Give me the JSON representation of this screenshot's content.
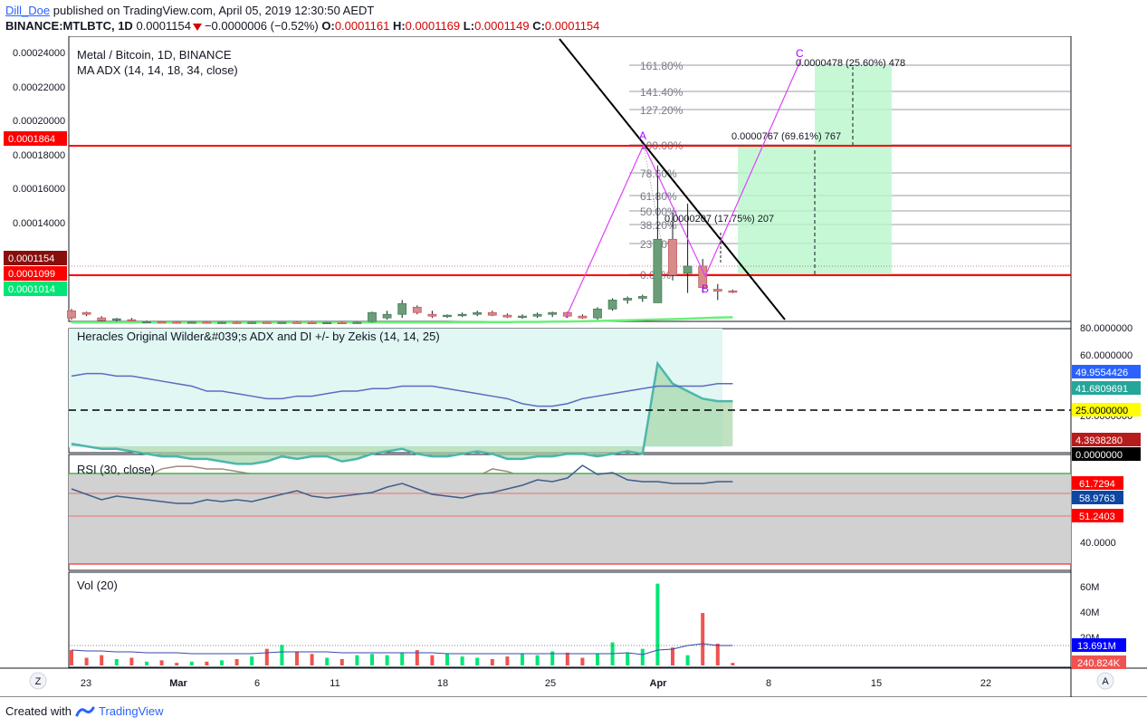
{
  "header": {
    "user": "Dill_Doe",
    "published_text": " published on TradingView.com, April 05, 2019 12:30:50 AEDT",
    "symbol": "BINANCE:MTLBTC, 1D",
    "last": "0.0001154",
    "change": "−0.0000006 (−0.52%)",
    "o_label": "O:",
    "o": "0.0001161",
    "h_label": "H:",
    "h": "0.0001169",
    "l_label": "L:",
    "l": "0.0001149",
    "c_label": "C:",
    "c": "0.0001154"
  },
  "main_panel": {
    "title": "Metal / Bitcoin, 1D, BINANCE",
    "study": "MA ADX (14, 14, 18, 34, close)",
    "price_labels": [
      "0.00024000",
      "0.00022000",
      "0.00020000",
      "0.00018000",
      "0.00016000",
      "0.00014000"
    ],
    "badges": [
      {
        "text": "0.0001864",
        "color": "#ff0000"
      },
      {
        "text": "0.0001154",
        "color": "#880e0e"
      },
      {
        "text": "0.0001099",
        "color": "#ff0000"
      },
      {
        "text": "0.0001014",
        "color": "#00e676"
      }
    ],
    "fib_levels": [
      "161.80%",
      "141.40%",
      "127.20%",
      "100.00%",
      "78.60%",
      "61.80%",
      "50.00%",
      "38.20%",
      "23.60%",
      "0.00%"
    ],
    "pattern_points": [
      "A",
      "B",
      "C"
    ],
    "annotations": [
      "0.0000478 (25.60%) 478",
      "0.0000767 (69.61%) 767",
      "0.0000207 (17.75%) 207"
    ]
  },
  "adx_panel": {
    "title": "Heracles Original Wilder&#039;s ADX and DI +/- by Zekis (14, 14, 25)",
    "axis_labels": [
      "80.0000000",
      "60.0000000",
      "20.0000000"
    ],
    "badges": [
      {
        "text": "49.9554426",
        "color": "#2962ff"
      },
      {
        "text": "41.6809691",
        "color": "#26a69a"
      },
      {
        "text": "25.0000000",
        "color": "#ffff00",
        "textcolor": "#000000"
      },
      {
        "text": "4.3938280",
        "color": "#b71c1c"
      },
      {
        "text": "0.0000000",
        "color": "#000000"
      }
    ]
  },
  "rsi_panel": {
    "title": "RSI (30, close)",
    "axis_labels": [
      "40.0000"
    ],
    "badges": [
      {
        "text": "61.7294",
        "color": "#ff0000"
      },
      {
        "text": "58.9763",
        "color": "#0d47a1"
      },
      {
        "text": "51.2403",
        "color": "#ff0000"
      }
    ]
  },
  "vol_panel": {
    "title": "Vol (20)",
    "axis_labels": [
      "60M",
      "40M",
      "20M"
    ],
    "badges": [
      {
        "text": "13.691M",
        "color": "#0000ff"
      },
      {
        "text": "240.824K",
        "color": "#ef5350"
      }
    ]
  },
  "time_axis": {
    "labels": [
      "23",
      "Mar",
      "6",
      "11",
      "18",
      "25",
      "Apr",
      "8",
      "15",
      "22"
    ],
    "left_button": "Z",
    "right_button": "A"
  },
  "footer": {
    "created": "Created with",
    "brand": "TradingView"
  },
  "chart_data": {
    "type": "candlestick",
    "title": "Metal / Bitcoin, 1D, BINANCE",
    "start_date": "2019-02-22",
    "ohlc": [
      [
        0.000105,
        0.000106,
        0.0001,
        0.000101
      ],
      [
        0.000104,
        0.0001045,
        0.000102,
        0.000103
      ],
      [
        0.000101,
        0.000102,
        9.9e-05,
        9.95e-05
      ],
      [
        0.0001,
        0.000101,
        9.9e-05,
        0.0001005
      ],
      [
        0.0001,
        0.000101,
        9.9e-05,
        9.95e-05
      ],
      [
        9.9e-05,
        9.95e-05,
        9.85e-05,
        9.9e-05
      ],
      [
        9.88e-05,
        9.9e-05,
        9.85e-05,
        9.87e-05
      ],
      [
        9.87e-05,
        9.9e-05,
        9.84e-05,
        9.86e-05
      ],
      [
        9.86e-05,
        9.9e-05,
        9.84e-05,
        9.87e-05
      ],
      [
        9.87e-05,
        9.9e-05,
        9.84e-05,
        9.85e-05
      ],
      [
        9.85e-05,
        9.9e-05,
        9.83e-05,
        9.86e-05
      ],
      [
        9.86e-05,
        9.9e-05,
        9.84e-05,
        9.85e-05
      ],
      [
        9.85e-05,
        9.89e-05,
        9.84e-05,
        9.86e-05
      ],
      [
        9.86e-05,
        9.89e-05,
        9.83e-05,
        9.85e-05
      ],
      [
        9.85e-05,
        9.88e-05,
        9.83e-05,
        9.86e-05
      ],
      [
        9.86e-05,
        9.9e-05,
        9.84e-05,
        9.85e-05
      ],
      [
        9.85e-05,
        9.89e-05,
        9.83e-05,
        9.84e-05
      ],
      [
        9.84e-05,
        9.88e-05,
        9.83e-05,
        9.85e-05
      ],
      [
        9.85e-05,
        9.89e-05,
        9.83e-05,
        9.84e-05
      ],
      [
        9.84e-05,
        9.9e-05,
        9.83e-05,
        9.86e-05
      ],
      [
        9.9e-05,
        0.0001045,
        9.85e-05,
        0.000104
      ],
      [
        0.000101,
        0.000105,
        0.0001,
        0.000103
      ],
      [
        0.000103,
        0.000111,
        0.000101,
        0.000109
      ],
      [
        0.000107,
        0.000108,
        0.000103,
        0.000104
      ],
      [
        0.000103,
        0.000105,
        0.000101,
        0.000102
      ],
      [
        0.000102,
        0.000103,
        0.000101,
        0.0001025
      ],
      [
        0.0001025,
        0.000104,
        0.0001015,
        0.000103
      ],
      [
        0.000103,
        0.000105,
        0.000102,
        0.000104
      ],
      [
        0.000104,
        0.000105,
        0.000102,
        0.0001025
      ],
      [
        0.0001025,
        0.0001035,
        0.000101,
        0.0001015
      ],
      [
        0.0001015,
        0.000103,
        0.0001005,
        0.000102
      ],
      [
        0.000102,
        0.000104,
        0.000101,
        0.000103
      ],
      [
        0.000103,
        0.0001045,
        0.0001015,
        0.000104
      ],
      [
        0.000104,
        0.0001045,
        0.000101,
        0.000102
      ],
      [
        0.000102,
        0.000103,
        0.0001005,
        0.000101
      ],
      [
        0.000101,
        0.000107,
        0.0001,
        0.000106
      ],
      [
        0.000106,
        0.000112,
        0.000105,
        0.000111
      ],
      [
        0.000111,
        0.000113,
        0.000109,
        0.000112
      ],
      [
        0.000112,
        0.000114,
        0.00011,
        0.000113
      ],
      [
        0.0001095,
        0.0001864,
        0.0001095,
        0.000145
      ],
      [
        0.000145,
        0.00016,
        0.000122,
        0.000125
      ],
      [
        0.000126,
        0.000165,
        0.000115,
        0.00013
      ],
      [
        0.00013,
        0.000134,
        0.000115,
        0.000118
      ],
      [
        0.000117,
        0.00012,
        0.000111,
        0.000116
      ],
      [
        0.0001161,
        0.0001169,
        0.0001149,
        0.0001154
      ]
    ],
    "volume": [
      12,
      6,
      8,
      5,
      6,
      3,
      4,
      2,
      3,
      3,
      4,
      5,
      7,
      13,
      16,
      11,
      9,
      6,
      5,
      8,
      9,
      8,
      10,
      12,
      8,
      9,
      7,
      6,
      5,
      7,
      9,
      8,
      11,
      10,
      6,
      9,
      18,
      10,
      13,
      64,
      14,
      8,
      41,
      17,
      2
    ],
    "series_adx": [
      26,
      25,
      24,
      24,
      23,
      22,
      21,
      21,
      20,
      20,
      19,
      18,
      18,
      19,
      21,
      20,
      21,
      21,
      19,
      20,
      22,
      23,
      24,
      22,
      21,
      21,
      22,
      23,
      22,
      20,
      20,
      21,
      21,
      22,
      22,
      21,
      22,
      23,
      22,
      58,
      50,
      47,
      44,
      43,
      43
    ],
    "series_di_plus": [
      53,
      54,
      54,
      53,
      53,
      52,
      51,
      50,
      49,
      47,
      47,
      46,
      45,
      44,
      44,
      45,
      45,
      46,
      47,
      47,
      48,
      48,
      49,
      49,
      49,
      48,
      47,
      46,
      45,
      44,
      42,
      41,
      41,
      42,
      44,
      45,
      46,
      47,
      48,
      49,
      49,
      49,
      49,
      50,
      50
    ],
    "series_di_minus": [
      8,
      8,
      14,
      14,
      13,
      13,
      16,
      17,
      17,
      16,
      16,
      15,
      14,
      14,
      13,
      11,
      10,
      11,
      12,
      12,
      12,
      13,
      14,
      14,
      14,
      13,
      12,
      13,
      16,
      15,
      13,
      8,
      7,
      6,
      5,
      5,
      6,
      6,
      5,
      6,
      6,
      5,
      5,
      5,
      4
    ],
    "rsi": [
      55,
      52,
      49,
      51,
      50,
      49,
      48,
      47,
      47,
      49,
      48,
      49,
      48,
      50,
      52,
      54,
      51,
      50,
      51,
      52,
      53,
      56,
      58,
      55,
      52,
      51,
      50,
      52,
      53,
      55,
      57,
      60,
      59,
      61,
      68,
      63,
      64,
      60,
      59,
      59,
      58,
      58,
      58,
      59,
      59
    ],
    "ma": [
      9.85e-05,
      9.86e-05,
      9.86e-05,
      9.87e-05,
      9.87e-05,
      9.88e-05,
      9.88e-05,
      9.89e-05,
      9.9e-05,
      9.91e-05,
      9.93e-05,
      9.95e-05,
      9.97e-05,
      9.99e-05,
      0.0001001,
      0.0001003,
      0.0001006,
      0.0001009,
      0.0001012,
      0.0001014
    ]
  }
}
